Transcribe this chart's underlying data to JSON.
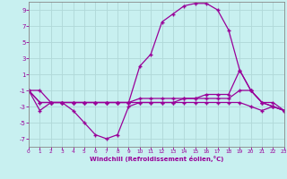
{
  "xlabel": "Windchill (Refroidissement éolien,°C)",
  "bg_color": "#c8f0f0",
  "line_color": "#990099",
  "grid_color": "#b0d8d8",
  "x": [
    0,
    1,
    2,
    3,
    4,
    5,
    6,
    7,
    8,
    9,
    10,
    11,
    12,
    13,
    14,
    15,
    16,
    17,
    18,
    19,
    20,
    21,
    22,
    23
  ],
  "curve1_big_arc": [
    -1.0,
    -1.0,
    -2.5,
    -2.5,
    -2.5,
    -2.5,
    -2.5,
    -2.5,
    -2.5,
    -2.5,
    2.0,
    3.5,
    7.5,
    8.5,
    9.5,
    9.8,
    9.8,
    9.0,
    6.5,
    1.5,
    -1.0,
    -2.5,
    -3.0,
    -3.5
  ],
  "curve2_flat": [
    -1.0,
    -2.5,
    -2.5,
    -2.5,
    -2.5,
    -2.5,
    -2.5,
    -2.5,
    -2.5,
    -2.5,
    -2.5,
    -2.5,
    -2.5,
    -2.5,
    -2.0,
    -2.0,
    -2.0,
    -2.0,
    -2.0,
    -1.0,
    -1.0,
    -2.5,
    -3.0,
    -3.5
  ],
  "curve3_rise": [
    -1.0,
    -2.5,
    -2.5,
    -2.5,
    -2.5,
    -2.5,
    -2.5,
    -2.5,
    -2.5,
    -2.5,
    -2.0,
    -2.0,
    -2.0,
    -2.0,
    -2.0,
    -2.0,
    -1.5,
    -1.5,
    -1.5,
    1.5,
    -1.0,
    -2.5,
    -2.5,
    -3.5
  ],
  "curve4_vshape": [
    -1.0,
    -3.5,
    -2.5,
    -2.5,
    -3.5,
    -5.0,
    -6.5,
    -7.0,
    -6.5,
    -3.0,
    -2.5,
    -2.5,
    -2.5,
    -2.5,
    -2.5,
    -2.5,
    -2.5,
    -2.5,
    -2.5,
    -2.5,
    -3.0,
    -3.5,
    -3.0,
    -3.5
  ],
  "xlim": [
    0,
    23
  ],
  "ylim": [
    -8,
    10
  ],
  "yticks": [
    -7,
    -5,
    -3,
    -1,
    1,
    3,
    5,
    7,
    9
  ],
  "xticks": [
    0,
    1,
    2,
    3,
    4,
    5,
    6,
    7,
    8,
    9,
    10,
    11,
    12,
    13,
    14,
    15,
    16,
    17,
    18,
    19,
    20,
    21,
    22,
    23
  ]
}
